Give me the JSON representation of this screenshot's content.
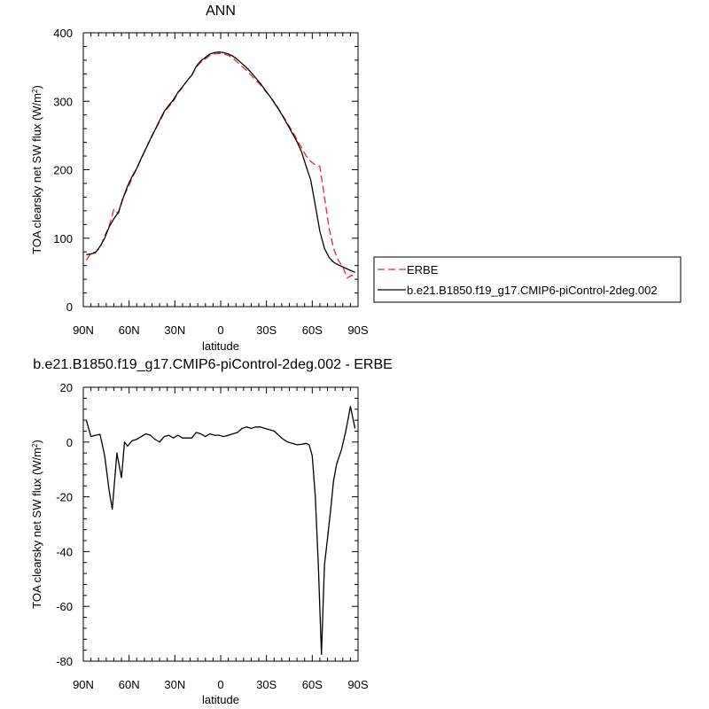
{
  "chart_data": [
    {
      "type": "line",
      "title": "ANN",
      "xlabel": "latitude",
      "ylabel_main": "TOA clearsky net SW flux (W/m",
      "ylabel_sup": "2",
      "ylabel_close": ")",
      "xlim": [
        90,
        -90
      ],
      "ylim": [
        0,
        400
      ],
      "x_tick_values": [
        90,
        60,
        30,
        0,
        -30,
        -60,
        -90
      ],
      "x_tick_labels": [
        "90N",
        "60N",
        "30N",
        "0",
        "30S",
        "60S",
        "90S"
      ],
      "y_tick_values": [
        0,
        100,
        200,
        300,
        400
      ],
      "y_tick_labels": [
        "0",
        "100",
        "200",
        "300",
        "400"
      ],
      "legend": {
        "placement": "right"
      },
      "series": [
        {
          "name": "ERBE",
          "color": "#e3262a",
          "dash": "dashed",
          "x": [
            88,
            85,
            82,
            79,
            76,
            73,
            70,
            67,
            64,
            61,
            58,
            55,
            52,
            49,
            46,
            43,
            40,
            37,
            34,
            31,
            28,
            25,
            22,
            19,
            16,
            13,
            10,
            7,
            4,
            1,
            -2,
            -5,
            -8,
            -11,
            -14,
            -17,
            -20,
            -23,
            -26,
            -29,
            -32,
            -35,
            -38,
            -41,
            -44,
            -47,
            -50,
            -53,
            -56,
            -59,
            -62,
            -65,
            -68,
            -71,
            -74,
            -77,
            -80,
            -83,
            -86,
            -88
          ],
          "y": [
            68,
            78,
            80,
            86,
            103,
            118,
            142,
            136,
            160,
            172,
            188,
            202,
            216,
            230,
            245,
            258,
            270,
            284,
            292,
            300,
            312,
            320,
            330,
            338,
            350,
            357,
            362,
            367,
            369,
            370,
            369,
            367,
            363,
            357,
            351,
            345,
            338,
            331,
            324,
            316,
            308,
            299,
            289,
            278,
            267,
            256,
            244,
            232,
            220,
            212,
            207,
            205,
            160,
            115,
            85,
            68,
            58,
            42,
            46,
            40
          ]
        },
        {
          "name": "b.e21.B1850.f19_g17.CMIP6-piControl-2deg.002",
          "color": "#000000",
          "dash": "solid",
          "x": [
            88,
            85,
            82,
            79,
            76,
            73,
            70,
            67,
            64,
            61,
            58,
            55,
            52,
            49,
            46,
            43,
            40,
            37,
            34,
            31,
            28,
            25,
            22,
            19,
            16,
            13,
            10,
            7,
            4,
            1,
            -2,
            -5,
            -8,
            -11,
            -14,
            -17,
            -20,
            -23,
            -26,
            -29,
            -32,
            -35,
            -38,
            -41,
            -44,
            -47,
            -50,
            -53,
            -56,
            -59,
            -62,
            -65,
            -68,
            -71,
            -74,
            -77,
            -80,
            -83,
            -86,
            -88
          ],
          "y": [
            76,
            77,
            79,
            88,
            100,
            117,
            128,
            138,
            158,
            176,
            190,
            202,
            217,
            231,
            245,
            258,
            272,
            285,
            294,
            302,
            313,
            321,
            330,
            338,
            351,
            359,
            364,
            369,
            371,
            372,
            371,
            369,
            366,
            361,
            355,
            349,
            342,
            334,
            326,
            317,
            308,
            298,
            288,
            277,
            265,
            253,
            241,
            226,
            205,
            185,
            148,
            110,
            85,
            72,
            65,
            61,
            58,
            55,
            52,
            50
          ]
        }
      ]
    },
    {
      "type": "line",
      "title": "b.e21.B1850.f19_g17.CMIP6-piControl-2deg.002 - ERBE",
      "xlabel": "latitude",
      "ylabel_main": "TOA clearsky net SW flux (W/m",
      "ylabel_sup": "2",
      "ylabel_close": ")",
      "xlim": [
        90,
        -90
      ],
      "ylim": [
        -80,
        20
      ],
      "x_tick_values": [
        90,
        60,
        30,
        0,
        -30,
        -60,
        -90
      ],
      "x_tick_labels": [
        "90N",
        "60N",
        "30N",
        "0",
        "30S",
        "60S",
        "90S"
      ],
      "y_tick_values": [
        -80,
        -60,
        -40,
        -20,
        0,
        20
      ],
      "y_tick_labels": [
        "-80",
        "-60",
        "-40",
        "-20",
        "0",
        "20"
      ],
      "series": [
        {
          "name": "",
          "color": "#000000",
          "dash": "solid",
          "x": [
            88,
            85,
            82,
            79,
            76,
            73,
            71,
            68,
            65,
            63,
            61,
            58,
            55,
            52,
            49,
            46,
            43,
            40,
            37,
            34,
            31,
            28,
            25,
            22,
            19,
            16,
            13,
            10,
            7,
            4,
            1,
            -2,
            -5,
            -8,
            -11,
            -14,
            -17,
            -20,
            -23,
            -26,
            -29,
            -32,
            -35,
            -38,
            -41,
            -44,
            -47,
            -50,
            -53,
            -56,
            -58,
            -60,
            -62,
            -64,
            -66,
            -68,
            -70,
            -72,
            -74,
            -76,
            -79,
            -82,
            -85,
            -88
          ],
          "y": [
            8,
            2,
            2.5,
            2.8,
            -5,
            -18,
            -24.5,
            -4,
            -13,
            0,
            -1.5,
            0.5,
            1,
            2,
            3,
            2.5,
            1,
            0,
            2,
            2.5,
            1.5,
            2.5,
            1.5,
            1.5,
            1.5,
            3.5,
            3,
            2,
            3,
            2.5,
            2.5,
            2,
            2.5,
            3,
            3.5,
            5,
            5.5,
            5,
            5.5,
            5.5,
            5,
            4.5,
            4,
            2.5,
            1,
            0,
            -0.5,
            -1,
            -0.8,
            -0.5,
            -1,
            -5,
            -20,
            -45,
            -77.5,
            -45,
            -35,
            -25,
            -14,
            -8,
            -3,
            4,
            13,
            5
          ]
        }
      ]
    }
  ]
}
